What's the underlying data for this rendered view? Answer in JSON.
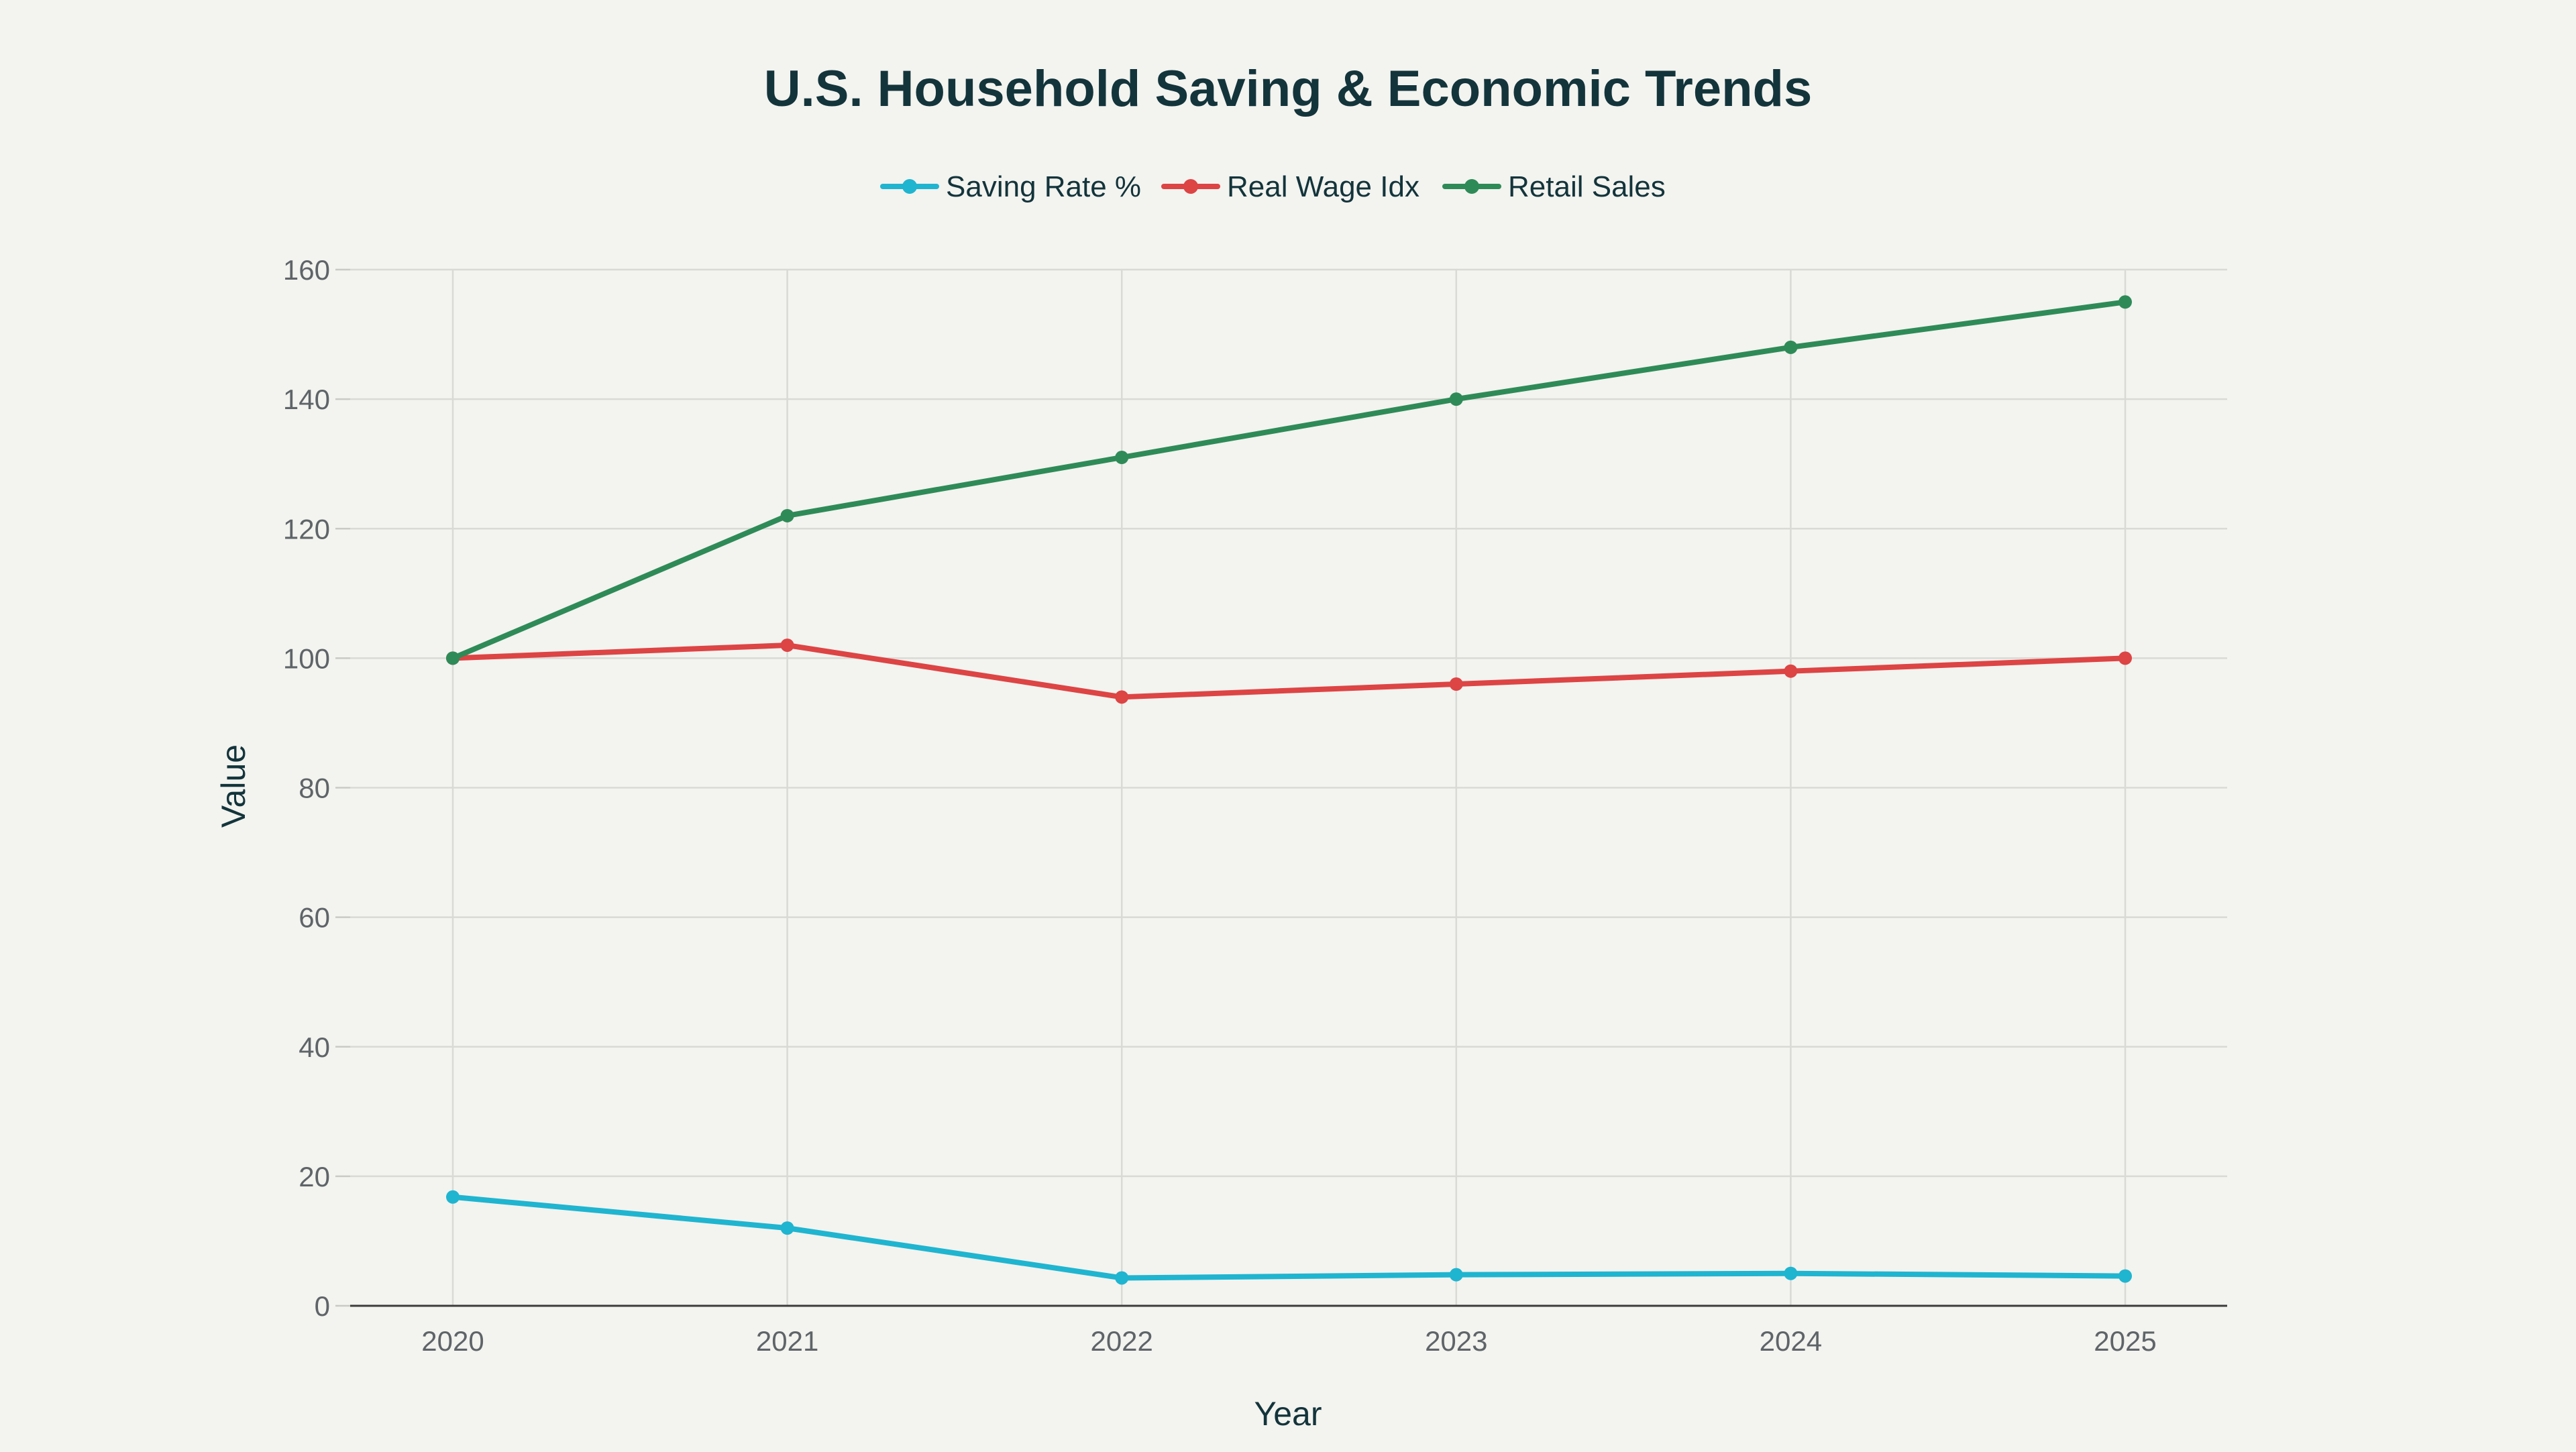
{
  "chart_data": {
    "type": "line",
    "title": "U.S. Household Saving & Economic Trends",
    "xlabel": "Year",
    "ylabel": "Value",
    "x": [
      "2020",
      "2021",
      "2022",
      "2023",
      "2024",
      "2025"
    ],
    "ylim": [
      0,
      160
    ],
    "yticks": [
      0,
      20,
      40,
      60,
      80,
      100,
      120,
      140,
      160
    ],
    "grid": true,
    "legend_position": "top-center",
    "series": [
      {
        "name": "Saving Rate %",
        "color": "#1fb5d0",
        "values": [
          16.8,
          12.0,
          4.3,
          4.8,
          5.0,
          4.6
        ]
      },
      {
        "name": "Real Wage Idx",
        "color": "#dd4444",
        "values": [
          100,
          102,
          94,
          96,
          98,
          100
        ]
      },
      {
        "name": "Retail Sales",
        "color": "#2e8b57",
        "values": [
          100,
          122,
          131,
          140,
          148,
          155
        ]
      }
    ]
  }
}
